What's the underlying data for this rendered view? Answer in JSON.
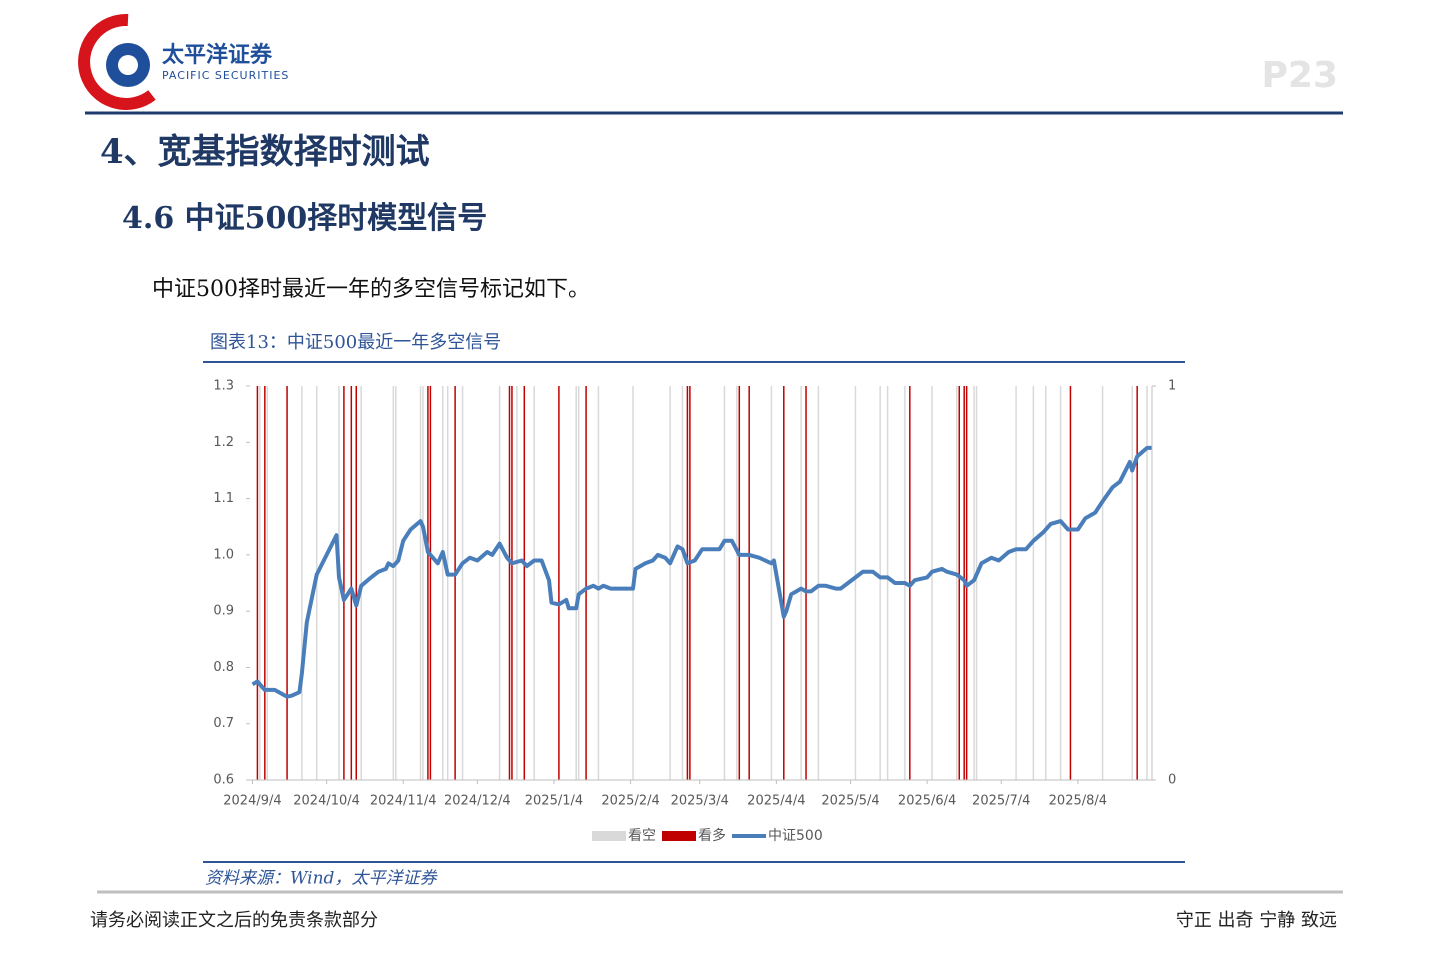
{
  "header": {
    "logo_cn": "太平洋证券",
    "logo_en": "PACIFIC SECURITIES",
    "page": "P23"
  },
  "section_title": "4、宽基指数择时测试",
  "subsection_title": "4.6 中证500择时模型信号",
  "body_text": "中证500择时最近一年的多空信号标记如下。",
  "figure_caption": "图表13：中证500最近一年多空信号",
  "chart_data": {
    "type": "combo",
    "xlim": [
      "2024/9/3",
      "2025/9/3"
    ],
    "xticks": [
      "2024/9/4",
      "2024/10/4",
      "2024/11/4",
      "2024/12/4",
      "2025/1/4",
      "2025/2/4",
      "2025/3/4",
      "2025/4/4",
      "2025/5/4",
      "2025/6/4",
      "2025/7/4",
      "2025/8/4"
    ],
    "ylim": [
      0.6,
      1.3
    ],
    "yticks": [
      1.3,
      1.2,
      1.1,
      {
        "value": 1,
        "label": "1.0"
      },
      0.9,
      0.8,
      0.7,
      0.6
    ],
    "y2lim": [
      0,
      1
    ],
    "y2ticks": [
      0,
      1
    ],
    "legend": "bottom",
    "series": [
      {
        "name": "看空",
        "type": "bar",
        "axis": "y2",
        "color": "#d9d9d9",
        "x": [
          "2024/9/7",
          "2024/9/10",
          "2024/9/24",
          "2024/9/30",
          "2024/10/9",
          "2024/10/18",
          "2024/10/31",
          "2024/11/1",
          "2024/11/11",
          "2024/11/12",
          "2024/11/20",
          "2024/11/22",
          "2024/11/28",
          "2024/12/13",
          "2024/12/20",
          "2024/12/27",
          "2025/1/13",
          "2025/1/14",
          "2025/1/22",
          "2025/2/5",
          "2025/2/20",
          "2025/2/25",
          "2025/3/14",
          "2025/3/19",
          "2025/4/2",
          "2025/4/14",
          "2025/4/21",
          "2025/5/6",
          "2025/5/16",
          "2025/5/19",
          "2025/5/26",
          "2025/6/6",
          "2025/6/16",
          "2025/6/23",
          "2025/6/24",
          "2025/7/10",
          "2025/7/17",
          "2025/7/22",
          "2025/7/28",
          "2025/8/14",
          "2025/8/26",
          "2025/9/1"
        ],
        "values": [
          1,
          1,
          1,
          1,
          1,
          1,
          1,
          1,
          1,
          1,
          1,
          1,
          1,
          1,
          1,
          1,
          1,
          1,
          1,
          1,
          1,
          1,
          1,
          1,
          1,
          1,
          1,
          1,
          1,
          1,
          1,
          1,
          1,
          1,
          1,
          1,
          1,
          1,
          1,
          1,
          1,
          1
        ]
      },
      {
        "name": "看多",
        "type": "bar",
        "axis": "y2",
        "color": "#c00000",
        "x": [
          "2024/9/6",
          "2024/9/9",
          "2024/9/18",
          "2024/10/11",
          "2024/10/14",
          "2024/10/16",
          "2024/11/14",
          "2024/11/15",
          "2024/11/25",
          "2024/12/17",
          "2024/12/18",
          "2024/12/23",
          "2025/1/6",
          "2025/1/17",
          "2025/2/27",
          "2025/2/28",
          "2025/3/20",
          "2025/3/24",
          "2025/4/7",
          "2025/4/16",
          "2025/5/28",
          "2025/6/17",
          "2025/6/19",
          "2025/6/20",
          "2025/8/1",
          "2025/8/28"
        ],
        "values": [
          1,
          1,
          1,
          1,
          1,
          1,
          1,
          1,
          1,
          1,
          1,
          1,
          1,
          1,
          1,
          1,
          1,
          1,
          1,
          1,
          1,
          1,
          1,
          1,
          1,
          1
        ]
      },
      {
        "name": "中证500",
        "type": "line",
        "color": "#4a7ebb",
        "x": [
          "2024/9/4",
          "2024/9/6",
          "2024/9/9",
          "2024/9/13",
          "2024/9/18",
          "2024/9/20",
          "2024/9/23",
          "2024/9/24",
          "2024/9/26",
          "2024/9/30",
          "2024/10/8",
          "2024/10/9",
          "2024/10/11",
          "2024/10/14",
          "2024/10/16",
          "2024/10/18",
          "2024/10/22",
          "2024/10/25",
          "2024/10/28",
          "2024/10/29",
          "2024/10/31",
          "2024/11/2",
          "2024/11/4",
          "2024/11/7",
          "2024/11/11",
          "2024/11/12",
          "2024/11/14",
          "2024/11/18",
          "2024/11/20",
          "2024/11/22",
          "2024/11/25",
          "2024/11/28",
          "2024/12/1",
          "2024/12/4",
          "2024/12/8",
          "2024/12/10",
          "2024/12/13",
          "2024/12/16",
          "2024/12/18",
          "2024/12/22",
          "2024/12/24",
          "2024/12/27",
          "2024/12/30",
          "2025/1/2",
          "2025/1/3",
          "2025/1/6",
          "2025/1/9",
          "2025/1/10",
          "2025/1/13",
          "2025/1/14",
          "2025/1/17",
          "2025/1/20",
          "2025/1/22",
          "2025/1/24",
          "2025/1/27",
          "2025/2/5",
          "2025/2/6",
          "2025/2/10",
          "2025/2/13",
          "2025/2/15",
          "2025/2/18",
          "2025/2/20",
          "2025/2/23",
          "2025/2/25",
          "2025/2/27",
          "2025/3/2",
          "2025/3/5",
          "2025/3/9",
          "2025/3/12",
          "2025/3/14",
          "2025/3/17",
          "2025/3/20",
          "2025/3/24",
          "2025/3/28",
          "2025/4/2",
          "2025/4/3",
          "2025/4/7",
          "2025/4/8",
          "2025/4/10",
          "2025/4/14",
          "2025/4/16",
          "2025/4/18",
          "2025/4/21",
          "2025/4/24",
          "2025/4/28",
          "2025/4/30",
          "2025/5/6",
          "2025/5/9",
          "2025/5/13",
          "2025/5/16",
          "2025/5/19",
          "2025/5/22",
          "2025/5/26",
          "2025/5/28",
          "2025/5/30",
          "2025/6/4",
          "2025/6/6",
          "2025/6/10",
          "2025/6/12",
          "2025/6/16",
          "2025/6/19",
          "2025/6/20",
          "2025/6/23",
          "2025/6/26",
          "2025/6/30",
          "2025/7/3",
          "2025/7/7",
          "2025/7/10",
          "2025/7/14",
          "2025/7/17",
          "2025/7/21",
          "2025/7/24",
          "2025/7/28",
          "2025/7/31",
          "2025/8/4",
          "2025/8/7",
          "2025/8/11",
          "2025/8/14",
          "2025/8/18",
          "2025/8/21",
          "2025/8/25",
          "2025/8/26",
          "2025/8/28",
          "2025/9/1",
          "2025/9/3"
        ],
        "values": [
          0.77,
          0.775,
          0.76,
          0.76,
          0.748,
          0.75,
          0.756,
          0.79,
          0.88,
          0.965,
          1.035,
          0.96,
          0.92,
          0.94,
          0.91,
          0.945,
          0.96,
          0.97,
          0.975,
          0.985,
          0.98,
          0.99,
          1.025,
          1.045,
          1.06,
          1.05,
          1.005,
          0.985,
          1.005,
          0.965,
          0.965,
          0.985,
          0.995,
          0.99,
          1.005,
          1.0,
          1.02,
          0.995,
          0.985,
          0.99,
          0.98,
          0.99,
          0.99,
          0.955,
          0.915,
          0.912,
          0.92,
          0.905,
          0.905,
          0.93,
          0.94,
          0.945,
          0.94,
          0.945,
          0.94,
          0.94,
          0.975,
          0.985,
          0.99,
          1.0,
          0.995,
          0.985,
          1.015,
          1.01,
          0.985,
          0.99,
          1.01,
          1.01,
          1.01,
          1.025,
          1.025,
          1.0,
          1.0,
          0.995,
          0.985,
          0.99,
          0.89,
          0.9,
          0.93,
          0.94,
          0.935,
          0.935,
          0.945,
          0.945,
          0.94,
          0.94,
          0.96,
          0.97,
          0.97,
          0.96,
          0.96,
          0.95,
          0.95,
          0.945,
          0.955,
          0.96,
          0.97,
          0.975,
          0.97,
          0.965,
          0.955,
          0.945,
          0.955,
          0.985,
          0.995,
          0.99,
          1.005,
          1.01,
          1.01,
          1.025,
          1.04,
          1.055,
          1.06,
          1.045,
          1.045,
          1.065,
          1.075,
          1.095,
          1.12,
          1.13,
          1.165,
          1.15,
          1.175,
          1.19,
          1.19
        ]
      }
    ]
  },
  "source": "资料来源：Wind，太平洋证券",
  "footer": {
    "disclaimer": "请务必阅读正文之后的免责条款部分",
    "slogan": "守正 出奇 宁静 致远"
  }
}
